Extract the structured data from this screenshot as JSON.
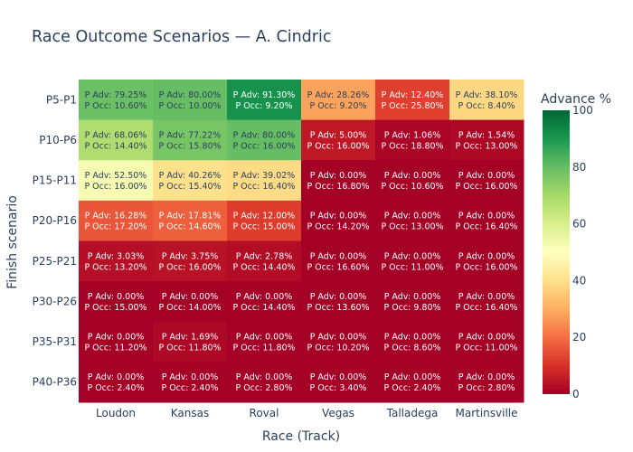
{
  "chart_data": {
    "type": "heatmap",
    "title": "Race Outcome Scenarios — A. Cindric",
    "xlabel": "Race (Track)",
    "ylabel": "Finish scenario",
    "x_categories": [
      "Loudon",
      "Kansas",
      "Roval",
      "Vegas",
      "Talladega",
      "Martinsville"
    ],
    "y_categories": [
      "P5-P1",
      "P10-P6",
      "P15-P11",
      "P20-P16",
      "P25-P21",
      "P30-P26",
      "P35-P31",
      "P40-P36"
    ],
    "p_adv": [
      [
        79.25,
        80.0,
        91.3,
        28.26,
        12.4,
        38.1
      ],
      [
        68.06,
        77.22,
        80.0,
        5.0,
        1.06,
        1.54
      ],
      [
        52.5,
        40.26,
        39.02,
        0.0,
        0.0,
        0.0
      ],
      [
        16.28,
        17.81,
        12.0,
        0.0,
        0.0,
        0.0
      ],
      [
        3.03,
        3.75,
        2.78,
        0.0,
        0.0,
        0.0
      ],
      [
        0.0,
        0.0,
        0.0,
        0.0,
        0.0,
        0.0
      ],
      [
        0.0,
        1.69,
        0.0,
        0.0,
        0.0,
        0.0
      ],
      [
        0.0,
        0.0,
        0.0,
        0.0,
        0.0,
        0.0
      ]
    ],
    "p_occ": [
      [
        10.6,
        10.0,
        9.2,
        9.2,
        25.8,
        8.4
      ],
      [
        14.4,
        15.8,
        16.0,
        16.0,
        18.8,
        13.0
      ],
      [
        16.0,
        15.4,
        16.4,
        16.8,
        10.6,
        16.0
      ],
      [
        17.2,
        14.6,
        15.0,
        14.2,
        13.0,
        16.4
      ],
      [
        13.2,
        16.0,
        14.4,
        16.6,
        11.0,
        16.0
      ],
      [
        15.0,
        14.0,
        14.4,
        13.6,
        9.8,
        16.4
      ],
      [
        11.2,
        11.8,
        11.8,
        10.2,
        8.6,
        11.0
      ],
      [
        2.4,
        2.4,
        2.8,
        3.4,
        2.4,
        2.8
      ]
    ],
    "cell_label_adv_prefix": "P Adv: ",
    "cell_label_occ_prefix": "P Occ: ",
    "cell_value_suffix": "%",
    "colorbar": {
      "title": "Advance %",
      "range": [
        0,
        100
      ],
      "ticks": [
        0,
        20,
        40,
        60,
        80,
        100
      ],
      "colorscale": "RdYlGn"
    }
  }
}
